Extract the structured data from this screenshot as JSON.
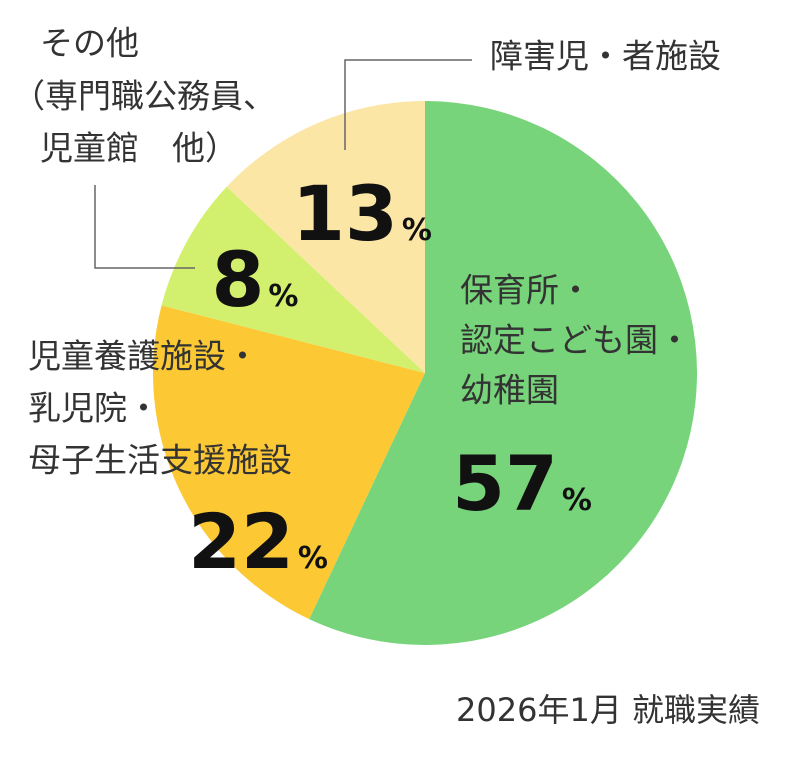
{
  "chart_data": {
    "type": "pie",
    "categories": [
      [
        "保育所・",
        "認定こども園・",
        "幼稚園"
      ],
      [
        "児童養護施設・",
        "乳児院・",
        "母子生活支援施設"
      ],
      [
        "その他",
        "（専門職公務員、",
        "児童館　他）"
      ],
      [
        "障害児・者施設"
      ]
    ],
    "values": [
      57,
      22,
      8,
      13
    ],
    "unit": "%",
    "colors": [
      "#77d47a",
      "#fcc934",
      "#d2ef6d",
      "#fbe6a6"
    ],
    "caption": "2026年1月 就職実績"
  }
}
